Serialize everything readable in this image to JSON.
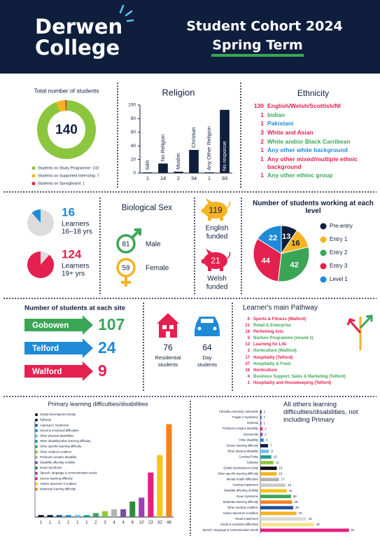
{
  "header": {
    "logo_top": "Derwen",
    "logo_bottom": "College",
    "title": "Student Cohort  2024",
    "subtitle": "Spring Term"
  },
  "chart_data": [
    {
      "type": "donut",
      "title": "Total number of students",
      "total": 140,
      "categories": [
        "Students on Study Programme: 132",
        "Students on Supported Internship: 7",
        "Students on Springboard: 1"
      ],
      "values": [
        132,
        7,
        1
      ],
      "colors": [
        "#8cc63e",
        "#f5b323",
        "#e4204f"
      ]
    },
    {
      "type": "bar",
      "title": "Religion",
      "categories": [
        "Sikh",
        "No Religion",
        "Muslim",
        "Christian",
        "Any Other Religion",
        "No response"
      ],
      "values": [
        1,
        14,
        2,
        34,
        1,
        93
      ],
      "color": "#0f1e3d",
      "ylim": [
        0,
        100
      ],
      "yticks": [
        0,
        20,
        40,
        60,
        80,
        100
      ]
    },
    {
      "type": "pie",
      "title": "Number of students working at each level",
      "categories": [
        "Pre-entry",
        "Entry 1",
        "Entry 2",
        "Entry 3",
        "Level 1"
      ],
      "values": [
        13,
        16,
        42,
        44,
        22
      ],
      "colors": [
        "#0f1e3d",
        "#f5b323",
        "#3aa655",
        "#e4204f",
        "#1f8ad6"
      ]
    },
    {
      "type": "bar",
      "title": "Primary learning difficulties/disabilities",
      "categories": [
        "Global Development Delay",
        "Epilepsy",
        "Asperger's Syndrome",
        "Social & emotional difficulties",
        "Other physical disabilities",
        "Other disability/other learning difficulty",
        "Other specific learning difficulty",
        "Other medical condition",
        "Profound complex disability",
        "Disability affecting mobility",
        "Down Syndrome",
        "Speech, language & communication needs",
        "Severe learning difficulty",
        "Autism Spectrum Condition",
        "Moderate learning difficulty"
      ],
      "values": [
        1,
        1,
        1,
        1,
        1,
        1,
        2,
        3,
        4,
        4,
        8,
        10,
        23,
        32,
        48
      ],
      "colors": [
        "#111111",
        "#0f1e3d",
        "#1f4f9a",
        "#1f8ad6",
        "#6cc3e8",
        "#1f9e8f",
        "#3aa655",
        "#8cc63e",
        "#b3b3b3",
        "#7b4fa0",
        "#2e8b3e",
        "#9b3fb5",
        "#e4207f",
        "#f5c518",
        "#f58220"
      ],
      "ylim": [
        0,
        50
      ]
    },
    {
      "type": "hbar",
      "title": "All others learning difficulties/disabilities, not including Primary",
      "categories": [
        "Clinically extremely vulnerable",
        "Fragile X Syndrome",
        "Dyslexia",
        "Profound complex disability",
        "Dyscalculia",
        "Other disability",
        "Severe learning difficulty",
        "Other physical disability",
        "Cerebral Palsy",
        "Epilepsy",
        "Global Development Delay",
        "Other specific learning difficulty",
        "Mental Health difficulties",
        "Hearing impairment",
        "Disability affecting mobility",
        "Down Syndrome",
        "Moderate learning difficulty",
        "Other medical condition",
        "Autism Spectrum Condition",
        "Visual impairment",
        "Social & emotional difficulties",
        "Speech, language & communication needs"
      ],
      "values": [
        1,
        1,
        1,
        2,
        2,
        3,
        7,
        8,
        10,
        12,
        15,
        15,
        17,
        23,
        24,
        28,
        29,
        30,
        33,
        42,
        49,
        81
      ],
      "colors": [
        "#0f1e3d",
        "#1f4f9a",
        "#9b3fb5",
        "#e4207f",
        "#7b4fa0",
        "#1f8ad6",
        "#0f1e3d",
        "#6cc3e8",
        "#1f9e8f",
        "#8cc63e",
        "#111111",
        "#f5b323",
        "#b3b3b3",
        "#c9c9c9",
        "#f5c518",
        "#3aa655",
        "#f58220",
        "#1f4f9a",
        "#f5b323",
        "#d9d9d9",
        "#f5e08a",
        "#e4207f"
      ],
      "xlim": [
        0,
        85
      ]
    }
  ],
  "learners": [
    {
      "value": 16,
      "label_lines": [
        "Learners",
        "16–18 yrs"
      ],
      "color": "#1f8ad6"
    },
    {
      "value": 124,
      "label_lines": [
        "Learners",
        "19+ yrs"
      ],
      "color": "#e4204f"
    }
  ],
  "ethnicity": {
    "title": "Ethnicity",
    "rows": [
      {
        "count": 130,
        "label": "English/Welsh/Scottish/NI",
        "color": "#e4204f"
      },
      {
        "count": 1,
        "label": "Indian",
        "color": "#3aa655"
      },
      {
        "count": 1,
        "label": "Pakistani",
        "color": "#1f8ad6"
      },
      {
        "count": 3,
        "label": "White and Asian",
        "color": "#e4204f"
      },
      {
        "count": 2,
        "label": "White and/or Black Carribean",
        "color": "#3aa655"
      },
      {
        "count": 1,
        "label": "Any other white background",
        "color": "#1f8ad6"
      },
      {
        "count": 1,
        "label": "Any other mixed/multiple ethnic background",
        "color": "#e4204f"
      },
      {
        "count": 1,
        "label": "Any other ethinc group",
        "color": "#3aa655"
      }
    ]
  },
  "sex": {
    "title": "Biological Sex",
    "items": [
      {
        "value": 81,
        "label": "Male",
        "color": "#3aa655"
      },
      {
        "value": 59,
        "label": "Female",
        "color": "#f5b323"
      }
    ]
  },
  "funding": [
    {
      "value": 119,
      "label_lines": [
        "English",
        "funded"
      ],
      "color": "#f5b323"
    },
    {
      "value": 21,
      "label_lines": [
        "Welsh",
        "funded"
      ],
      "color": "#e4204f"
    }
  ],
  "sites": {
    "title": "Number of students at each site",
    "items": [
      {
        "name": "Gobowen",
        "value": 107,
        "color": "#3aa655"
      },
      {
        "name": "Telford",
        "value": 24,
        "color": "#1f8ad6"
      },
      {
        "name": "Walford",
        "value": 9,
        "color": "#e4204f"
      }
    ]
  },
  "residence": [
    {
      "value": 76,
      "label_lines": [
        "Residential",
        "students"
      ],
      "color": "#e4204f"
    },
    {
      "value": 64,
      "label_lines": [
        "Day",
        "students"
      ],
      "color": "#1f8ad6"
    }
  ],
  "pathway": {
    "title": "Learner's main Pathway",
    "rows": [
      {
        "count": 6,
        "label": "Sports & Fitness (Walford)",
        "color": "#e4204f"
      },
      {
        "count": 21,
        "label": "Retail & Enterprise",
        "color": "#3aa655"
      },
      {
        "count": 18,
        "label": "Perfoming Arts",
        "color": "#e4204f"
      },
      {
        "count": 5,
        "label": "Nurture Programme (strand 1)",
        "color": "#3aa655"
      },
      {
        "count": 13,
        "label": "Learning for Life",
        "color": "#e4204f"
      },
      {
        "count": 3,
        "label": "Horticulture (Walford)",
        "color": "#3aa655"
      },
      {
        "count": 17,
        "label": "Hospitality (Telford)",
        "color": "#e4204f"
      },
      {
        "count": 37,
        "label": "Hospitality & Food",
        "color": "#3aa655"
      },
      {
        "count": 18,
        "label": "Horticulture",
        "color": "#e4204f"
      },
      {
        "count": 4,
        "label": "Business Support, Sales & Marketing (Telford)",
        "color": "#3aa655"
      },
      {
        "count": 1,
        "label": "Hospitality and Housekeeping (Telford)",
        "color": "#e4204f"
      }
    ]
  }
}
